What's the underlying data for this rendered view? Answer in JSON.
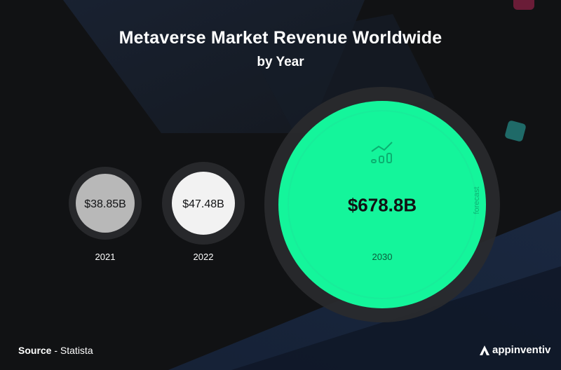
{
  "title": "Metaverse Market Revenue Worldwide",
  "subtitle": "by Year",
  "chart_data": {
    "type": "bubble",
    "title": "Metaverse Market Revenue Worldwide",
    "subtitle": "by Year",
    "unit": "USD billions",
    "categories": [
      "2021",
      "2022",
      "2030"
    ],
    "values": [
      38.85,
      47.48,
      678.8
    ],
    "value_labels": [
      "$38.85B",
      "$47.48B",
      "$678.8B"
    ],
    "annotations": [
      {
        "category": "2030",
        "text": "forecast"
      }
    ],
    "colors": [
      "#b9b9b9",
      "#f2f2f2",
      "#14f59b"
    ],
    "legend": "none",
    "grid": false
  },
  "source": {
    "label": "Source",
    "separator": " - ",
    "name": "Statista"
  },
  "brand": {
    "name": "appinventiv",
    "icon": "appinventiv-logo-icon"
  },
  "decor": {
    "accent_teal": "#1f6a68",
    "accent_magenta": "#7a1f3d",
    "bg": "#111214"
  }
}
